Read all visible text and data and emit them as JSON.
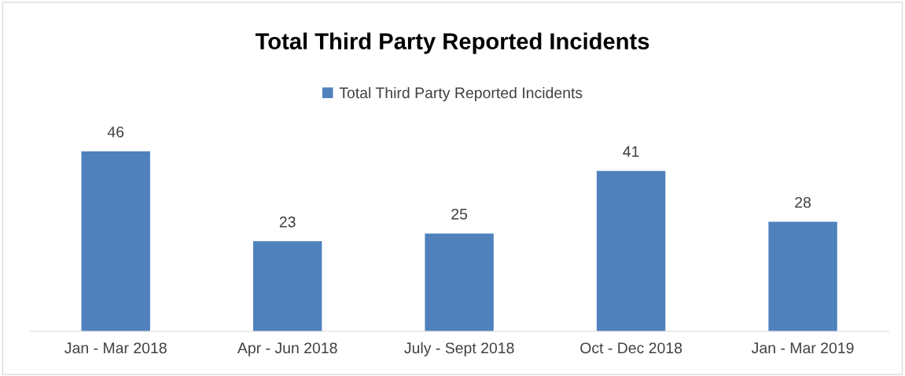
{
  "chart_data": {
    "type": "bar",
    "title": "Total Third Party Reported Incidents",
    "categories": [
      "Jan - Mar 2018",
      "Apr - Jun 2018",
      "July - Sept 2018",
      "Oct - Dec 2018",
      "Jan - Mar 2019"
    ],
    "series": [
      {
        "name": "Total Third Party Reported Incidents",
        "color": "#4f81bd",
        "values": [
          46,
          23,
          25,
          41,
          28
        ]
      }
    ],
    "data_labels": true,
    "legend": "top"
  }
}
